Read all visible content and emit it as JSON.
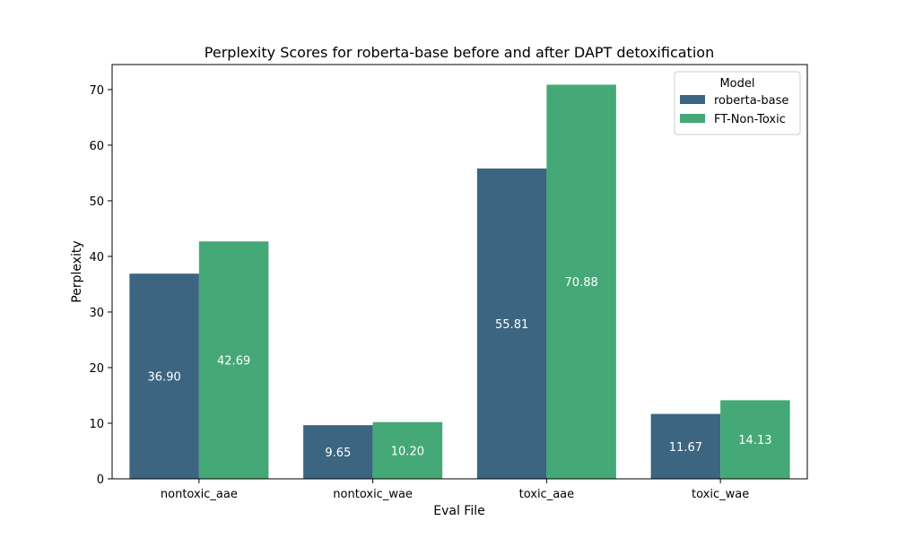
{
  "chart_data": {
    "type": "bar",
    "title": "Perplexity Scores for roberta-base before and after DAPT detoxification",
    "xlabel": "Eval File",
    "ylabel": "Perplexity",
    "categories": [
      "nontoxic_aae",
      "nontoxic_wae",
      "toxic_aae",
      "toxic_wae"
    ],
    "series": [
      {
        "name": "roberta-base",
        "values": [
          36.9,
          9.65,
          55.81,
          11.67
        ],
        "labels": [
          "36.90",
          "9.65",
          "55.81",
          "11.67"
        ],
        "color": "#3b6580"
      },
      {
        "name": "FT-Non-Toxic",
        "values": [
          42.69,
          10.2,
          70.88,
          14.13
        ],
        "labels": [
          "42.69",
          "10.20",
          "70.88",
          "14.13"
        ],
        "color": "#45a877"
      }
    ],
    "ylim": [
      0,
      74.5
    ],
    "yticks": [
      0,
      10,
      20,
      30,
      40,
      50,
      60,
      70
    ],
    "grid": false,
    "legend": {
      "title": "Model",
      "placement": "top-right"
    }
  }
}
